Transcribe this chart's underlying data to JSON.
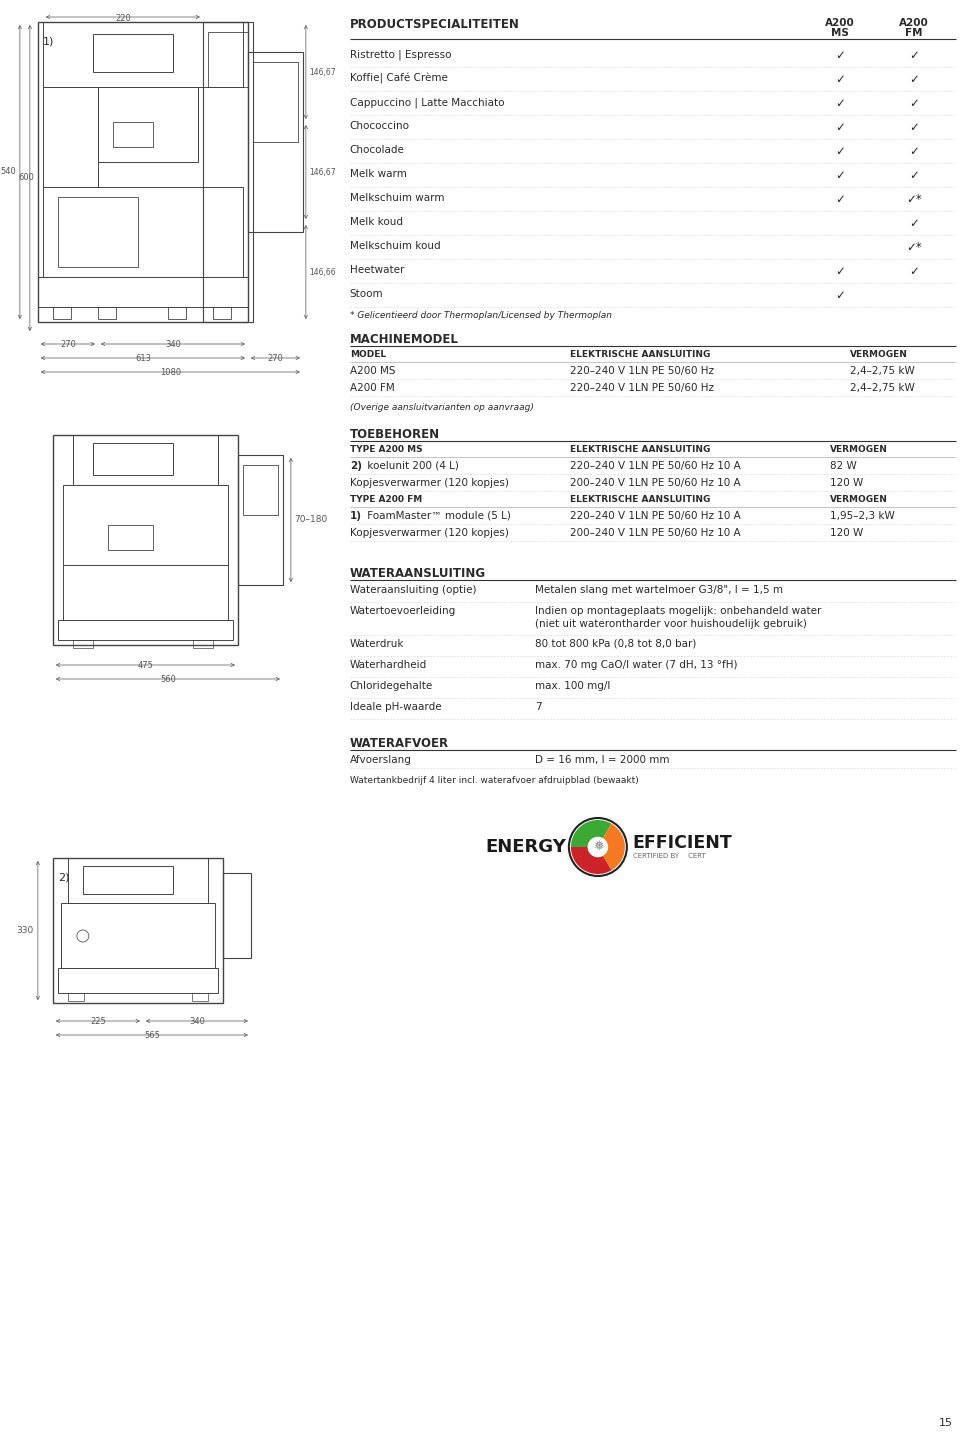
{
  "bg_color": "#ffffff",
  "text_color": "#2a2a2a",
  "dim_color": "#555555",
  "draw_color": "#444444",
  "line_dark": "#333333",
  "line_mid": "#999999",
  "line_light": "#cccccc",
  "page_number": "15",
  "section_product": "PRODUCTSPECIALITEITEN",
  "product_rows": [
    {
      "name": "Ristretto | Espresso",
      "ms": true,
      "fm": true
    },
    {
      "name": "Koffie| Café Crème",
      "ms": true,
      "fm": true
    },
    {
      "name": "Cappuccino | Latte Macchiato",
      "ms": true,
      "fm": true
    },
    {
      "name": "Chococcino",
      "ms": true,
      "fm": true
    },
    {
      "name": "Chocolade",
      "ms": true,
      "fm": true
    },
    {
      "name": "Melk warm",
      "ms": true,
      "fm": true
    },
    {
      "name": "Melkschuim warm",
      "ms": true,
      "fm": true,
      "fm_star": true
    },
    {
      "name": "Melk koud",
      "ms": false,
      "fm": true
    },
    {
      "name": "Melkschuim koud",
      "ms": false,
      "fm": true,
      "fm_star": true
    },
    {
      "name": "Heetwater",
      "ms": true,
      "fm": true
    },
    {
      "name": "Stoom",
      "ms": true,
      "fm": false
    }
  ],
  "footnote": "* Gelicentieerd door Thermoplan/Licensed by Thermoplan",
  "section_machine": "MACHINEMODEL",
  "machine_headers": [
    "MODEL",
    "ELEKTRISCHE AANSLUITING",
    "VERMOGEN"
  ],
  "machine_rows": [
    [
      "A200 MS",
      "220–240 V 1LN PE 50/60 Hz",
      "2,4–2,75 kW"
    ],
    [
      "A200 FM",
      "220–240 V 1LN PE 50/60 Hz",
      "2,4–2,75 kW"
    ]
  ],
  "machine_footnote": "(Overige aansluitvarianten op aanvraag)",
  "section_toebehoren": "TOEBEHOREN",
  "toeb_header_ms": "TYPE A200 MS",
  "toeb_header_elec": "ELEKTRISCHE AANSLUITING",
  "toeb_header_verm": "VERMOGEN",
  "toeb_ms_rows": [
    {
      "bold": "2)",
      "rest": " koelunit 200 (4 L)",
      "elec": "220–240 V 1LN PE 50/60 Hz 10 A",
      "verm": "82 W"
    },
    {
      "bold": "",
      "rest": "Kopjesverwarmer (120 kopjes)",
      "elec": "200–240 V 1LN PE 50/60 Hz 10 A",
      "verm": "120 W"
    }
  ],
  "toeb_header_fm": "TYPE A200 FM",
  "toeb_fm_rows": [
    {
      "bold": "1)",
      "rest": " FoamMaster™ module (5 L)",
      "elec": "220–240 V 1LN PE 50/60 Hz 10 A",
      "verm": "1,95–2,3 kW"
    },
    {
      "bold": "",
      "rest": "Kopjesverwarmer (120 kopjes)",
      "elec": "200–240 V 1LN PE 50/60 Hz 10 A",
      "verm": "120 W"
    }
  ],
  "section_water": "WATERAANSLUITING",
  "water_rows": [
    {
      "label": "Wateraansluiting (optie)",
      "value": "Metalen slang met wartelmoer G3/8\", l = 1,5 m",
      "lines": 1
    },
    {
      "label": "Watertoevoerleiding",
      "value": "Indien op montageplaats mogelijk: onbehandeld water\n(niet uit waterontharder voor huishoudelijk gebruik)",
      "lines": 2
    },
    {
      "label": "Waterdruk",
      "value": "80 tot 800 kPa (0,8 tot 8,0 bar)",
      "lines": 1
    },
    {
      "label": "Waterhardheid",
      "value": "max. 70 mg CaO/l water (7 dH, 13 °fH)",
      "lines": 1
    },
    {
      "label": "Chloridegehalte",
      "value": "max. 100 mg/l",
      "lines": 1
    },
    {
      "label": "Ideale pH-waarde",
      "value": "7",
      "lines": 1
    }
  ],
  "section_afvoer": "WATERAFVOER",
  "afvoer_rows": [
    {
      "label": "Afvoerslang",
      "value": "D = 16 mm, l = 2000 mm"
    }
  ],
  "afvoer_footnote": "Watertankbedrijf 4 liter incl. waterafvoer afdruipblad (bewaakt)"
}
